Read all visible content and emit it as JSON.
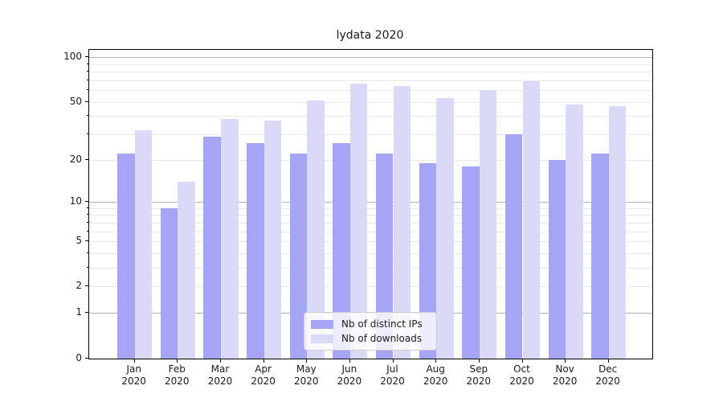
{
  "chart_data": {
    "type": "bar",
    "title": "lydata 2020",
    "categories": [
      "Jan",
      "Feb",
      "Mar",
      "Apr",
      "May",
      "Jun",
      "Jul",
      "Aug",
      "Sep",
      "Oct",
      "Nov",
      "Dec"
    ],
    "category_year": "2020",
    "series": [
      {
        "name": "Nb of distinct IPs",
        "color": "#a5a5f5",
        "values": [
          22,
          9,
          29,
          26,
          22,
          26,
          22,
          19,
          18,
          30,
          20,
          22
        ]
      },
      {
        "name": "Nb of downloads",
        "color": "#dadaf8",
        "values": [
          32,
          14,
          38,
          37,
          51,
          66,
          64,
          53,
          60,
          69,
          48,
          47
        ]
      }
    ],
    "xlabel": "",
    "ylabel": "",
    "yscale": "log1p",
    "ylim": [
      0,
      112
    ],
    "yticks_labeled": [
      0,
      1,
      2,
      5,
      10,
      20,
      50,
      100
    ],
    "yticks_major": [
      1,
      10,
      100
    ],
    "yticks_minor": [
      2,
      3,
      4,
      6,
      7,
      8,
      9,
      20,
      30,
      40,
      60,
      70,
      80,
      90
    ],
    "yticks_minor_labeled": [
      2,
      5,
      20,
      50
    ],
    "grid": true,
    "legend_position": "lower center"
  },
  "colors": {
    "spine": "#000000",
    "grid_major": "#b3b3b3",
    "grid_minor": "#e7e7e7",
    "text": "#1a1a1a",
    "legend_border": "#cccccc",
    "legend_bg": "rgba(255,255,255,0.8)"
  }
}
